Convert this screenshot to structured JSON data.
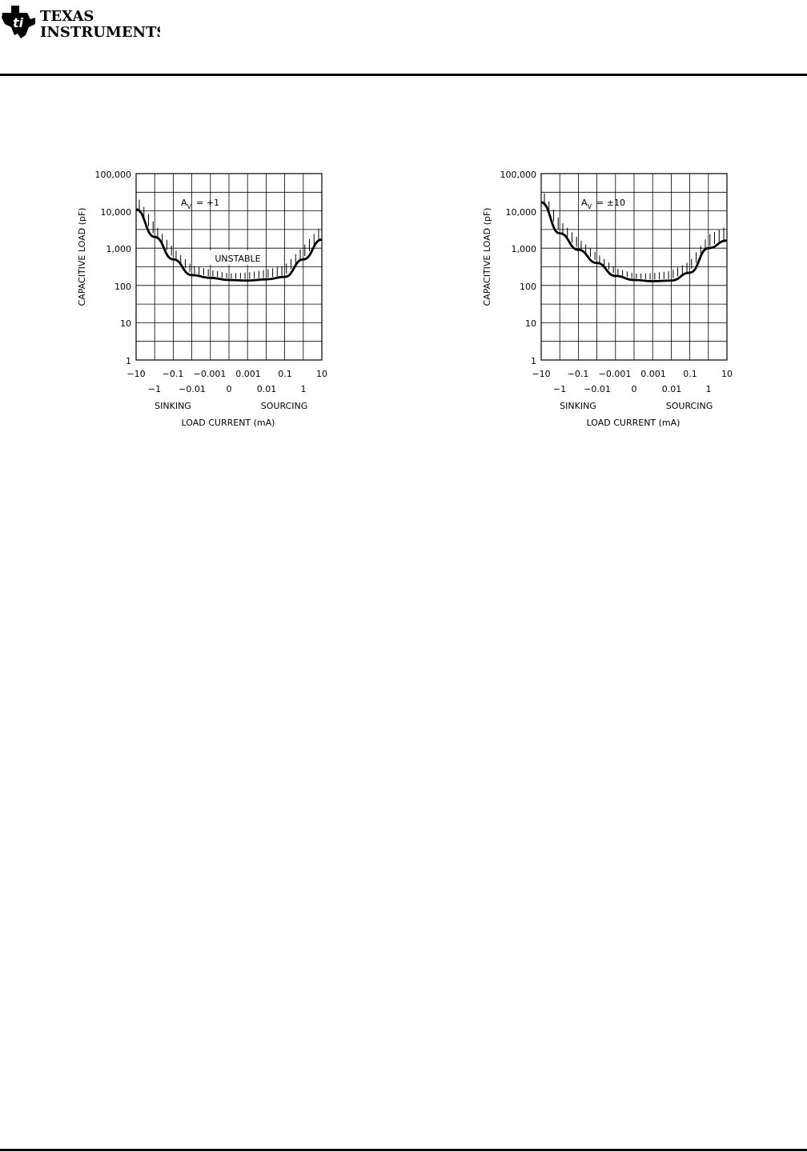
{
  "header": {
    "logo_line1": "TEXAS",
    "logo_line2": "INSTRUMENTS"
  },
  "chart_data": [
    {
      "type": "line",
      "annotation_label": "A",
      "annotation_subscript": "V",
      "annotation_value": "= +1",
      "region_label": "UNSTABLE",
      "ylabel": "CAPACITIVE LOAD (pF)",
      "xlabel": "LOAD CURRENT (mA)",
      "xlabel_left": "SINKING",
      "xlabel_right": "SOURCING",
      "yscale": "log",
      "ylim": [
        1,
        100000
      ],
      "y_ticks": [
        "100,000",
        "10,000",
        "1,000",
        "100",
        "10",
        "1"
      ],
      "x_ticks_top": [
        "−10",
        "−0.1",
        "−0.001",
        "0.001",
        "0.1",
        "10"
      ],
      "x_ticks_bottom": [
        "−1",
        "−0.01",
        "0",
        "0.01",
        "1"
      ],
      "grid": true,
      "x": [
        -10,
        -1,
        -0.1,
        -0.01,
        -0.001,
        0,
        0.001,
        0.01,
        0.1,
        1,
        10
      ],
      "y": [
        11000,
        2000,
        500,
        190,
        160,
        140,
        135,
        145,
        170,
        500,
        1700
      ]
    },
    {
      "type": "line",
      "annotation_label": "A",
      "annotation_subscript": "V",
      "annotation_value": "= ±10",
      "region_label": "",
      "ylabel": "CAPACITIVE LOAD (pF)",
      "xlabel": "LOAD CURRENT (mA)",
      "xlabel_left": "SINKING",
      "xlabel_right": "SOURCING",
      "yscale": "log",
      "ylim": [
        1,
        100000
      ],
      "y_ticks": [
        "100,000",
        "10,000",
        "1,000",
        "100",
        "10",
        "1"
      ],
      "x_ticks_top": [
        "−10",
        "−0.1",
        "−0.001",
        "0.001",
        "0.1",
        "10"
      ],
      "x_ticks_bottom": [
        "−1",
        "−0.01",
        "0",
        "0.01",
        "1"
      ],
      "grid": true,
      "x": [
        -10,
        -1,
        -0.1,
        -0.01,
        -0.001,
        0,
        0.001,
        0.01,
        0.1,
        1,
        10
      ],
      "y": [
        17000,
        2500,
        900,
        400,
        180,
        140,
        130,
        135,
        220,
        1000,
        1600
      ]
    }
  ]
}
